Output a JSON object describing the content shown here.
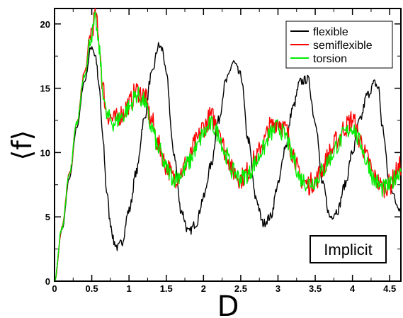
{
  "chart_data": {
    "type": "line",
    "xlabel": "D",
    "ylabel": "⟨f⟩",
    "xlim": [
      0,
      4.65
    ],
    "ylim": [
      0,
      21.2
    ],
    "x_ticks": [
      0,
      0.5,
      1,
      1.5,
      2,
      2.5,
      3,
      3.5,
      4,
      4.5
    ],
    "x_tick_labels": [
      "0",
      "0.5",
      "1",
      "1.5",
      "2",
      "2.5",
      "3",
      "3.5",
      "4",
      "4.5"
    ],
    "y_ticks": [
      0,
      5,
      10,
      15,
      20
    ],
    "y_tick_labels": [
      "0",
      "5",
      "10",
      "15",
      "20"
    ],
    "grid": false,
    "legend_position": "top-right",
    "annotation": "Implicit",
    "series": [
      {
        "name": "flexible",
        "color": "#000000",
        "x": [
          0,
          0.1,
          0.2,
          0.3,
          0.4,
          0.5,
          0.55,
          0.6,
          0.65,
          0.7,
          0.75,
          0.8,
          0.85,
          0.9,
          1.0,
          1.1,
          1.2,
          1.3,
          1.4,
          1.45,
          1.5,
          1.6,
          1.7,
          1.8,
          1.9,
          2.0,
          2.1,
          2.2,
          2.3,
          2.4,
          2.5,
          2.6,
          2.7,
          2.8,
          2.9,
          3.0,
          3.1,
          3.2,
          3.3,
          3.4,
          3.5,
          3.6,
          3.7,
          3.8,
          3.9,
          4.0,
          4.1,
          4.2,
          4.3,
          4.35,
          4.4,
          4.5,
          4.6,
          4.65
        ],
        "y": [
          0,
          4.0,
          8.0,
          12.0,
          15.5,
          18.3,
          17.5,
          15.0,
          11.0,
          7.0,
          4.5,
          3.0,
          2.6,
          3.0,
          5.5,
          8.5,
          12.5,
          16.0,
          18.3,
          18.0,
          16.0,
          10.0,
          5.5,
          3.8,
          4.5,
          6.5,
          9.0,
          12.5,
          15.5,
          17.0,
          16.0,
          11.0,
          6.5,
          4.5,
          5.0,
          7.5,
          10.5,
          13.5,
          15.5,
          15.7,
          12.5,
          7.5,
          5.0,
          5.5,
          7.5,
          10.0,
          12.5,
          14.5,
          15.4,
          15.0,
          12.0,
          7.5,
          6.0,
          5.5
        ]
      },
      {
        "name": "semiflexible",
        "color": "#ff0000",
        "x": [
          0,
          0.1,
          0.2,
          0.3,
          0.4,
          0.5,
          0.55,
          0.6,
          0.65,
          0.7,
          0.8,
          0.9,
          1.0,
          1.1,
          1.2,
          1.3,
          1.4,
          1.5,
          1.6,
          1.7,
          1.8,
          1.9,
          2.0,
          2.1,
          2.2,
          2.3,
          2.4,
          2.5,
          2.6,
          2.7,
          2.8,
          2.9,
          3.0,
          3.1,
          3.2,
          3.3,
          3.4,
          3.5,
          3.6,
          3.7,
          3.8,
          3.9,
          4.0,
          4.1,
          4.2,
          4.3,
          4.4,
          4.5,
          4.6,
          4.65
        ],
        "y": [
          0,
          4.2,
          8.3,
          12.3,
          16.2,
          19.5,
          20.8,
          18.5,
          15.0,
          13.0,
          12.5,
          13.0,
          13.8,
          14.8,
          14.5,
          12.5,
          10.5,
          9.0,
          8.0,
          8.5,
          9.5,
          10.8,
          12.0,
          12.8,
          12.0,
          10.0,
          8.5,
          8.0,
          8.5,
          9.5,
          10.8,
          12.0,
          12.5,
          11.8,
          10.0,
          8.0,
          7.5,
          7.8,
          8.8,
          10.0,
          11.0,
          12.0,
          12.6,
          11.0,
          9.5,
          8.0,
          7.3,
          7.5,
          8.5,
          9.0
        ]
      },
      {
        "name": "torsion",
        "color": "#00ee00",
        "x": [
          0,
          0.1,
          0.2,
          0.3,
          0.4,
          0.5,
          0.55,
          0.6,
          0.65,
          0.7,
          0.8,
          0.9,
          1.0,
          1.1,
          1.2,
          1.3,
          1.4,
          1.5,
          1.6,
          1.7,
          1.8,
          1.9,
          2.0,
          2.1,
          2.2,
          2.3,
          2.4,
          2.5,
          2.6,
          2.7,
          2.8,
          2.9,
          3.0,
          3.1,
          3.2,
          3.3,
          3.4,
          3.5,
          3.6,
          3.7,
          3.8,
          3.9,
          4.0,
          4.1,
          4.2,
          4.3,
          4.4,
          4.5,
          4.6,
          4.65
        ],
        "y": [
          0,
          4.2,
          8.3,
          12.3,
          16.0,
          19.2,
          20.3,
          18.0,
          14.8,
          12.8,
          12.3,
          12.8,
          13.5,
          14.5,
          14.0,
          12.0,
          10.2,
          8.8,
          8.0,
          8.3,
          9.2,
          10.3,
          11.5,
          12.2,
          11.5,
          9.8,
          8.5,
          8.0,
          8.3,
          9.2,
          10.3,
          11.5,
          12.0,
          11.3,
          9.6,
          8.0,
          7.6,
          7.8,
          8.6,
          9.6,
          10.6,
          11.5,
          12.0,
          10.8,
          9.2,
          7.8,
          7.2,
          7.4,
          8.3,
          8.8
        ]
      }
    ]
  }
}
